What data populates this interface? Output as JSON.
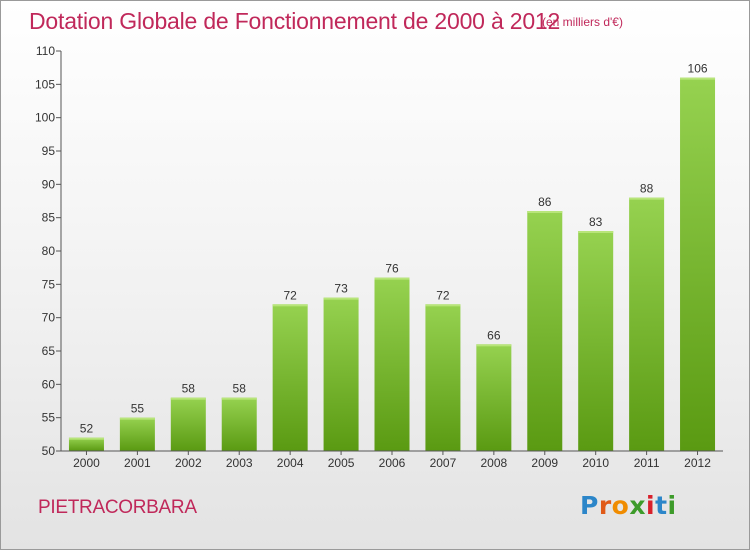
{
  "page": {
    "title": "Dotation Globale de Fonctionnement de 2000 à 2012",
    "unit": "(en milliers d'€)",
    "commune": "PIETRACORBARA",
    "logo": {
      "text": "Proxiti",
      "letter_colors": [
        "#2c86c9",
        "#e05a18",
        "#f08c00",
        "#3d9b2a",
        "#d8202b",
        "#2c86c9",
        "#3d9b2a"
      ]
    }
  },
  "chart_data": {
    "type": "bar",
    "title": "Dotation Globale de Fonctionnement de 2000 à 2012",
    "subtitle": "(en milliers d'€)",
    "xlabel": "",
    "ylabel": "",
    "categories": [
      "2000",
      "2001",
      "2002",
      "2003",
      "2004",
      "2005",
      "2006",
      "2007",
      "2008",
      "2009",
      "2010",
      "2011",
      "2012"
    ],
    "values": [
      52,
      55,
      58,
      58,
      72,
      73,
      76,
      72,
      66,
      86,
      83,
      88,
      106
    ],
    "ylim": [
      50,
      110
    ],
    "yticks": [
      50,
      55,
      60,
      65,
      70,
      75,
      80,
      85,
      90,
      95,
      100,
      105,
      110
    ],
    "grid": false,
    "bar_color_top": "#96d250",
    "bar_color_bottom": "#5a9a12",
    "legend": "none"
  }
}
